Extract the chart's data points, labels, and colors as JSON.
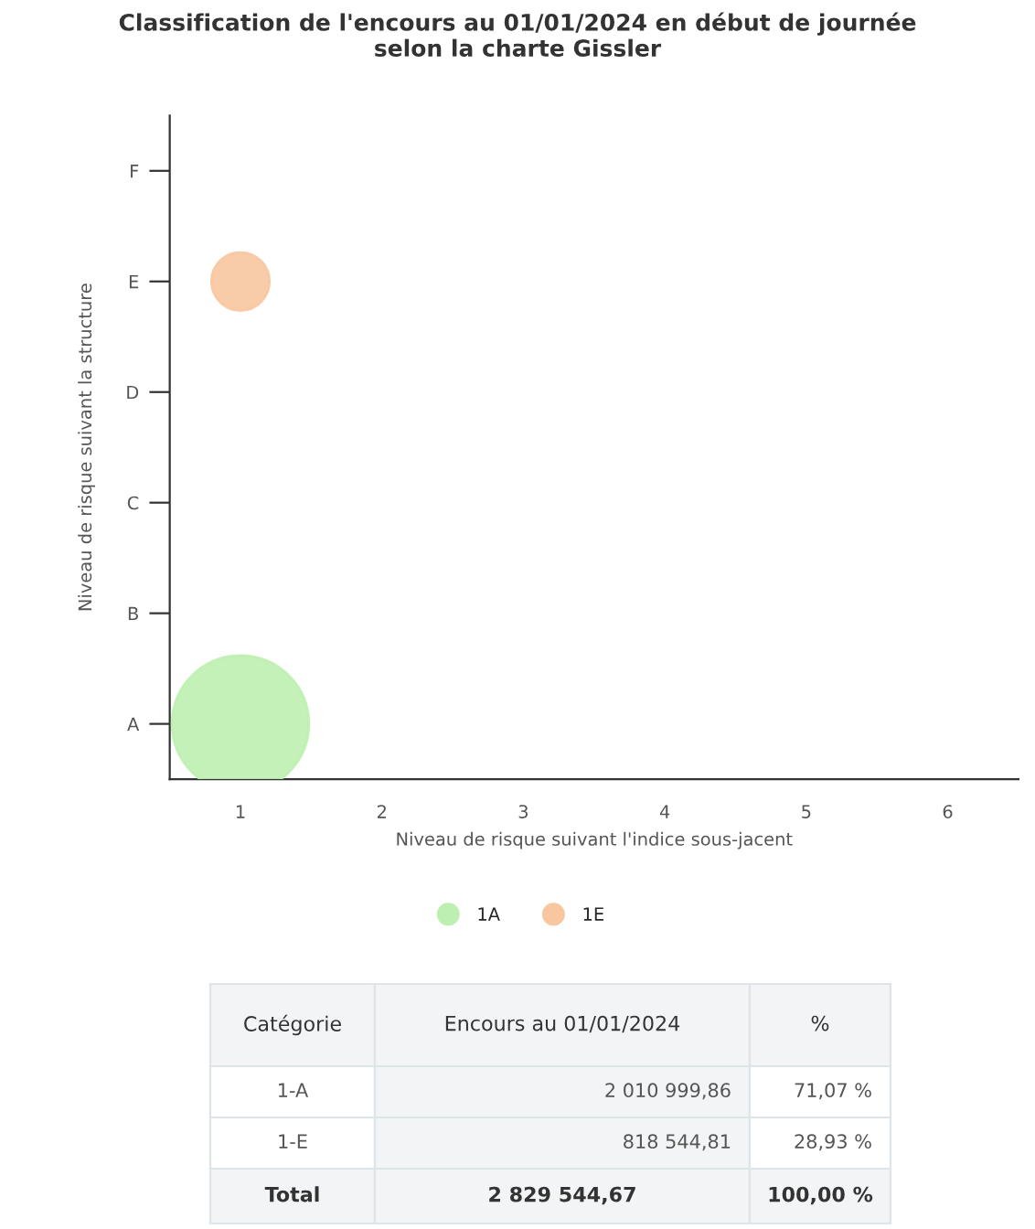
{
  "chart_data": {
    "type": "bubble",
    "title": "Classification de l'encours au 01/01/2024 en début de journée\nselon la charte Gissler",
    "xlabel": "Niveau de risque suivant l'indice sous-jacent",
    "ylabel": "Niveau de risque suivant la structure",
    "xlim": [
      0.5,
      6.5
    ],
    "xticks": [
      1,
      2,
      3,
      4,
      5,
      6
    ],
    "categories": [
      "F",
      "E",
      "D",
      "C",
      "B",
      "A"
    ],
    "orientation": "horizontal",
    "series": [
      {
        "name": "1A",
        "color": "#bdf0b0",
        "values": [
          null,
          null,
          null,
          null,
          null,
          1
        ],
        "sizes": [
          null,
          null,
          null,
          null,
          null,
          1
        ]
      },
      {
        "name": "1E",
        "color": "#f8c7a0",
        "values": [
          null,
          1,
          null,
          null,
          null,
          null
        ],
        "sizes": [
          null,
          0.18,
          null,
          null,
          null,
          null
        ]
      }
    ],
    "marker": "circle",
    "grid": false,
    "legend": "bottom",
    "annotations": [
      "Catégorie",
      "Encours au 01/01/2024",
      "%",
      "1-A",
      "2 010 999,86",
      "71,07 %",
      "1-E",
      "818 544,81",
      "28,93 %",
      "Total",
      "2 829 544,67",
      "100,00 %"
    ]
  }
}
